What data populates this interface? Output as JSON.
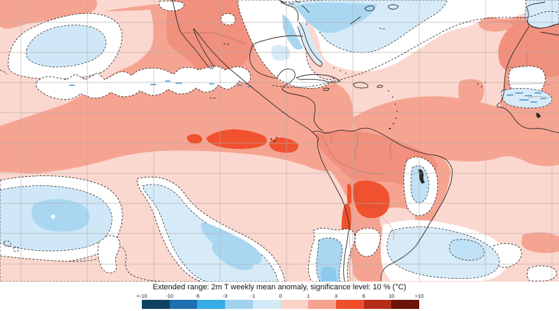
{
  "title": "Extended range: 2m T weekly mean anomaly, significance level: 10 % (°C)",
  "colorbar": {
    "labels": [
      "<-10",
      "-10",
      "-6",
      "-3",
      "-1",
      "0",
      "1",
      "3",
      "6",
      "10",
      ">10"
    ],
    "colors": [
      "#10425f",
      "#1d6fae",
      "#35ace6",
      "#a0d2ef",
      "#d4e9f7",
      "#fad2c8",
      "#f5a291",
      "#ef4f2b",
      "#b32d18",
      "#6d150a"
    ],
    "units": "°C"
  },
  "map_palette": {
    "background_0_1": "#fbd8cf",
    "warm_1_3": "#f6a492",
    "warm_1_3_deep": "#f0907d",
    "warm_3_6": "#f0512e",
    "cool_0_-1": "#d7eaf8",
    "cool_-1_-3": "#a9d7f2",
    "cool_-3_-6_hint": "#8ccbee",
    "not_significant": "#ffffff"
  },
  "chart_data": {
    "type": "heatmap",
    "subtype": "filled-contour temperature anomaly map with significance contours",
    "title": "Extended range: 2m T weekly mean anomaly, significance level: 10 % (°C)",
    "units": "°C",
    "legend_position": "bottom",
    "legend_levels": [
      "<-10",
      "-10",
      "-6",
      "-3",
      "-1",
      "0",
      "1",
      "3",
      "6",
      "10",
      ">10"
    ],
    "legend_colors": [
      "#10425f",
      "#1d6fae",
      "#35ace6",
      "#a0d2ef",
      "#d4e9f7",
      "#fad2c8",
      "#f5a291",
      "#ef4f2b",
      "#b32d18",
      "#6d150a"
    ],
    "region": "North & South America, eastern Pacific, Atlantic, west Africa, Iberia",
    "grid": true,
    "notable_features": [
      {
        "anomaly": "+3 to +6",
        "location": "equatorial eastern Pacific warm tongue (El Nino)"
      },
      {
        "anomaly": "+3 to +6",
        "location": "Paraguay / Bolivia / northern Argentina"
      },
      {
        "anomaly": "+1 to +3",
        "location": "southwestern USA and Mexico"
      },
      {
        "anomaly": "+1 to +3",
        "location": "Amazon basin and northern South America"
      },
      {
        "anomaly": "+1 to +3",
        "location": "central North Atlantic"
      },
      {
        "anomaly": "+1 to +3",
        "location": "Sahara and Guinea coast"
      },
      {
        "anomaly": "-1 to -3",
        "location": "north-central Pacific cell"
      },
      {
        "anomaly": "-1 to -3",
        "location": "two subtropical South Pacific cells"
      },
      {
        "anomaly": "-1 to -3",
        "location": "northwest Atlantic off New England"
      },
      {
        "anomaly": "-1 to -3",
        "location": "interior northeast Brazil"
      },
      {
        "anomaly": "-1 to -3",
        "location": "South Atlantic and Chilean coast"
      },
      {
        "anomaly": "0 to -1 hatched",
        "location": "Sahel band"
      },
      {
        "anomaly": "not significant (white bands, dashed contours)",
        "location": "between warm and cool regions"
      }
    ]
  }
}
